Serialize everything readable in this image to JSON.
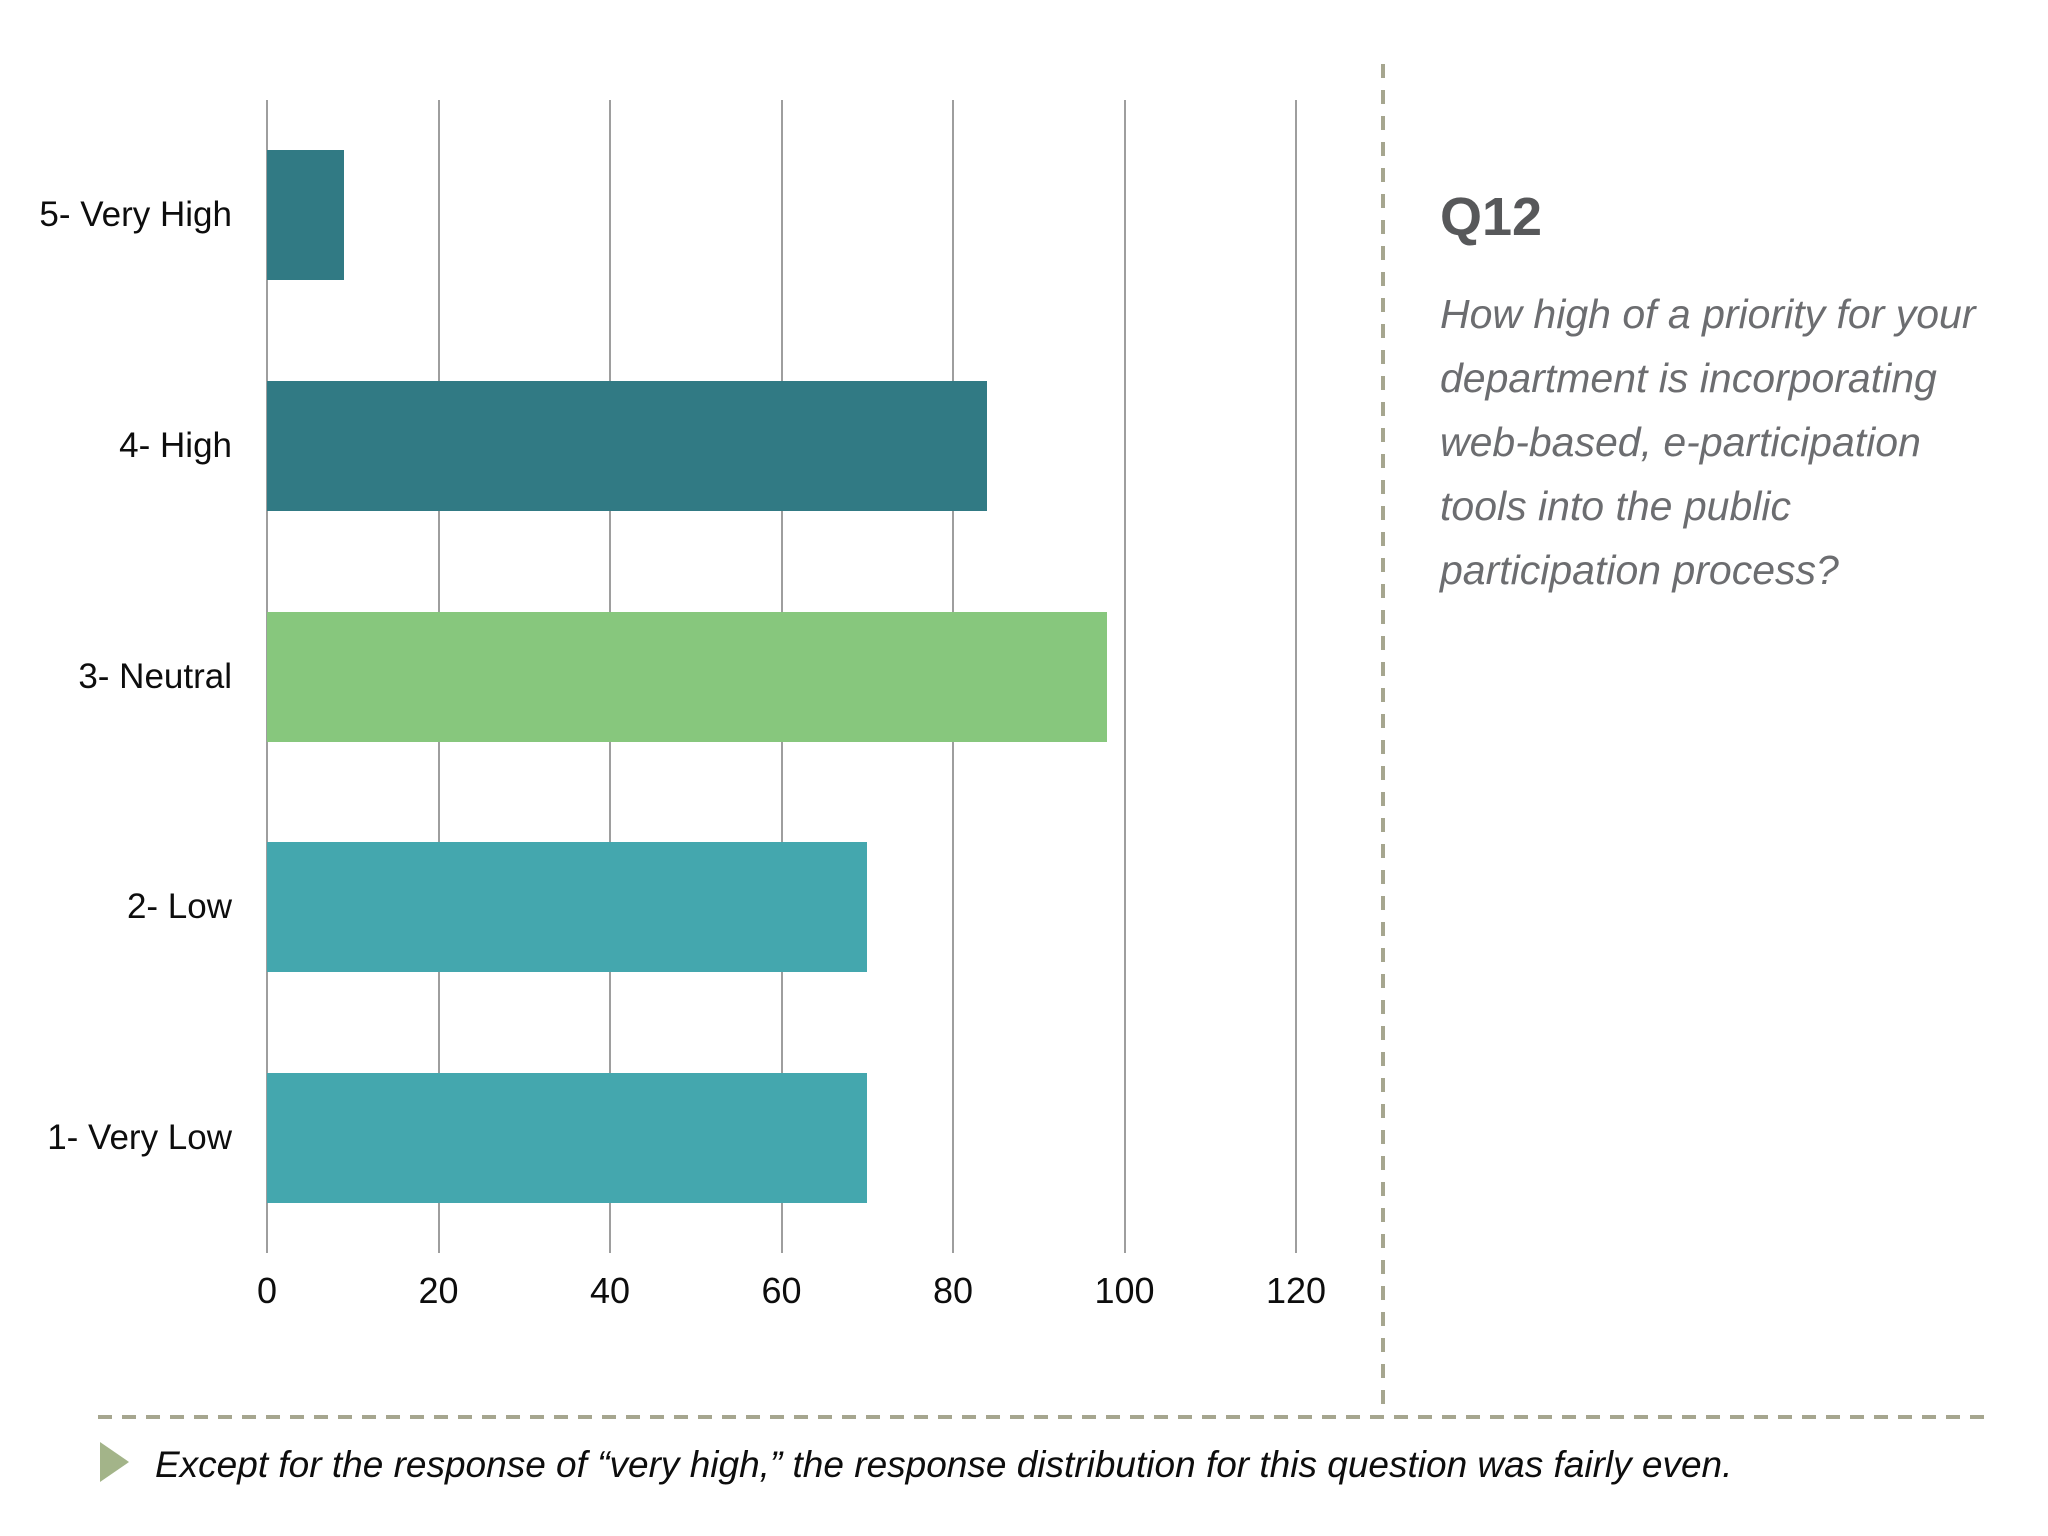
{
  "chart_data": {
    "type": "bar",
    "orientation": "horizontal",
    "title": "",
    "categories": [
      "5- Very High",
      "4- High",
      "3- Neutral",
      "2- Low",
      "1- Very Low"
    ],
    "values": [
      9,
      84,
      98,
      70,
      70
    ],
    "bar_colors": [
      "#317a84",
      "#317a84",
      "#87c77d",
      "#44a7ae",
      "#44a7ae"
    ],
    "xlim": [
      0,
      120
    ],
    "x_ticks": [
      0,
      20,
      40,
      60,
      80,
      100,
      120
    ],
    "grid": "vertical gridlines on",
    "legend": "none",
    "xlabel": "",
    "ylabel": ""
  },
  "side_panel": {
    "title": "Q12",
    "question": "How high of a priority for your department is incorporating web-based, e-participation tools into the public participation process?"
  },
  "footer": {
    "note": "Except for the response of “very high,”  the response distribution for this question was fairly even."
  },
  "colors": {
    "bar_dark_teal": "#317a84",
    "bar_green": "#87c77d",
    "bar_teal": "#44a7ae",
    "gridline": "#9e9e9e",
    "dashed_line": "#a6a68f",
    "note_triangle": "#a3b489",
    "panel_title_text": "#57585a",
    "question_text": "#6c6d70",
    "axis_label_text": "#0d0d0d"
  }
}
